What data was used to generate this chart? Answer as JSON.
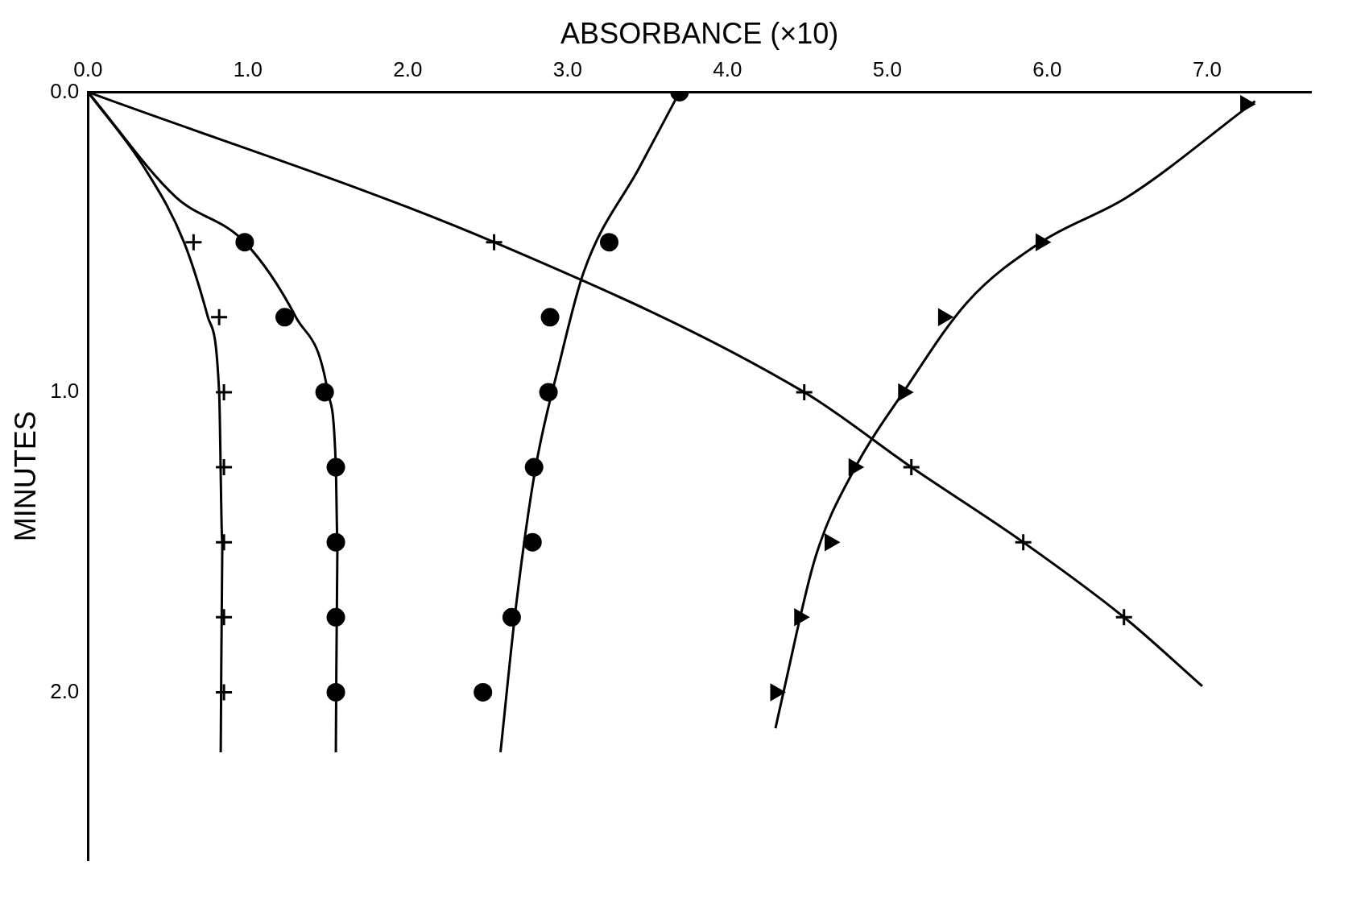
{
  "chart_data": {
    "type": "scatter",
    "xlabel": "ABSORBANCE (×10)",
    "ylabel": "MINUTES",
    "xlim": [
      0,
      7.65
    ],
    "ylim": [
      2.56,
      0
    ],
    "xticks": [
      {
        "value": 0,
        "label": "0.0"
      },
      {
        "value": 1,
        "label": "1.0"
      },
      {
        "value": 2,
        "label": "2.0"
      },
      {
        "value": 3,
        "label": "3.0"
      },
      {
        "value": 4,
        "label": "4.0"
      },
      {
        "value": 5,
        "label": "5.0"
      },
      {
        "value": 6,
        "label": "6.0"
      },
      {
        "value": 7,
        "label": "7.0"
      }
    ],
    "yticks": [
      {
        "value": 0,
        "label": "0.0"
      },
      {
        "value": 1,
        "label": "1.0"
      },
      {
        "value": 2,
        "label": "2.0"
      }
    ],
    "grid": false,
    "legend": false,
    "series": [
      {
        "type": "line",
        "color": "#000000",
        "marker": "none",
        "x": [
          0,
          0.35,
          0.6,
          0.75,
          0.82,
          0.84,
          0.83
        ],
        "values": [
          0,
          0.25,
          0.5,
          0.75,
          1.0,
          1.5,
          2.2
        ]
      },
      {
        "type": "scatter",
        "color": "#000000",
        "marker": "cross",
        "x": [
          0.66,
          0.82,
          0.85,
          0.85,
          0.85,
          0.85,
          0.85
        ],
        "values": [
          0.5,
          0.75,
          1.0,
          1.25,
          1.5,
          1.75,
          2.0
        ]
      },
      {
        "type": "line",
        "color": "#000000",
        "marker": "none",
        "x": [
          0,
          0.55,
          0.98,
          1.3,
          1.5,
          1.55,
          1.56,
          1.55
        ],
        "values": [
          0,
          0.35,
          0.5,
          0.75,
          1.0,
          1.25,
          1.5,
          2.2
        ]
      },
      {
        "type": "scatter",
        "color": "#000000",
        "marker": "circle",
        "x": [
          0.98,
          1.23,
          1.48,
          1.55,
          1.55,
          1.55,
          1.55
        ],
        "values": [
          0.5,
          0.75,
          1.0,
          1.25,
          1.5,
          1.75,
          2.0
        ]
      },
      {
        "type": "line",
        "color": "#000000",
        "marker": "none",
        "x": [
          3.7,
          3.45,
          3.1,
          2.95,
          2.8,
          2.68,
          2.58
        ],
        "values": [
          0,
          0.25,
          0.6,
          0.9,
          1.25,
          1.7,
          2.2
        ]
      },
      {
        "type": "scatter",
        "color": "#000000",
        "marker": "circle",
        "x": [
          3.7,
          3.26,
          2.89,
          2.88,
          2.79,
          2.78,
          2.65,
          2.47
        ],
        "values": [
          0,
          0.5,
          0.75,
          1.0,
          1.25,
          1.5,
          1.75,
          2.0
        ]
      },
      {
        "type": "line",
        "color": "#000000",
        "marker": "none",
        "x": [
          0,
          2.54,
          4.48,
          5.15,
          5.85,
          6.48,
          6.97
        ],
        "values": [
          0,
          0.5,
          1.0,
          1.25,
          1.5,
          1.75,
          1.98
        ]
      },
      {
        "type": "scatter",
        "color": "#000000",
        "marker": "cross",
        "x": [
          2.54,
          4.48,
          5.15,
          5.85,
          6.48
        ],
        "values": [
          0.5,
          1.0,
          1.25,
          1.5,
          1.75
        ]
      },
      {
        "type": "line",
        "color": "#000000",
        "marker": "none",
        "x": [
          7.3,
          6.5,
          5.96,
          5.5,
          5.1,
          4.8,
          4.55,
          4.35,
          4.3
        ],
        "values": [
          0.03,
          0.35,
          0.5,
          0.7,
          1.0,
          1.25,
          1.55,
          2.0,
          2.12
        ]
      },
      {
        "type": "scatter",
        "color": "#000000",
        "marker": "triangle",
        "x": [
          7.24,
          5.96,
          5.35,
          5.1,
          4.79,
          4.64,
          4.45,
          4.3
        ],
        "values": [
          0.04,
          0.5,
          0.75,
          1.0,
          1.25,
          1.5,
          1.75,
          2.0
        ]
      }
    ]
  }
}
